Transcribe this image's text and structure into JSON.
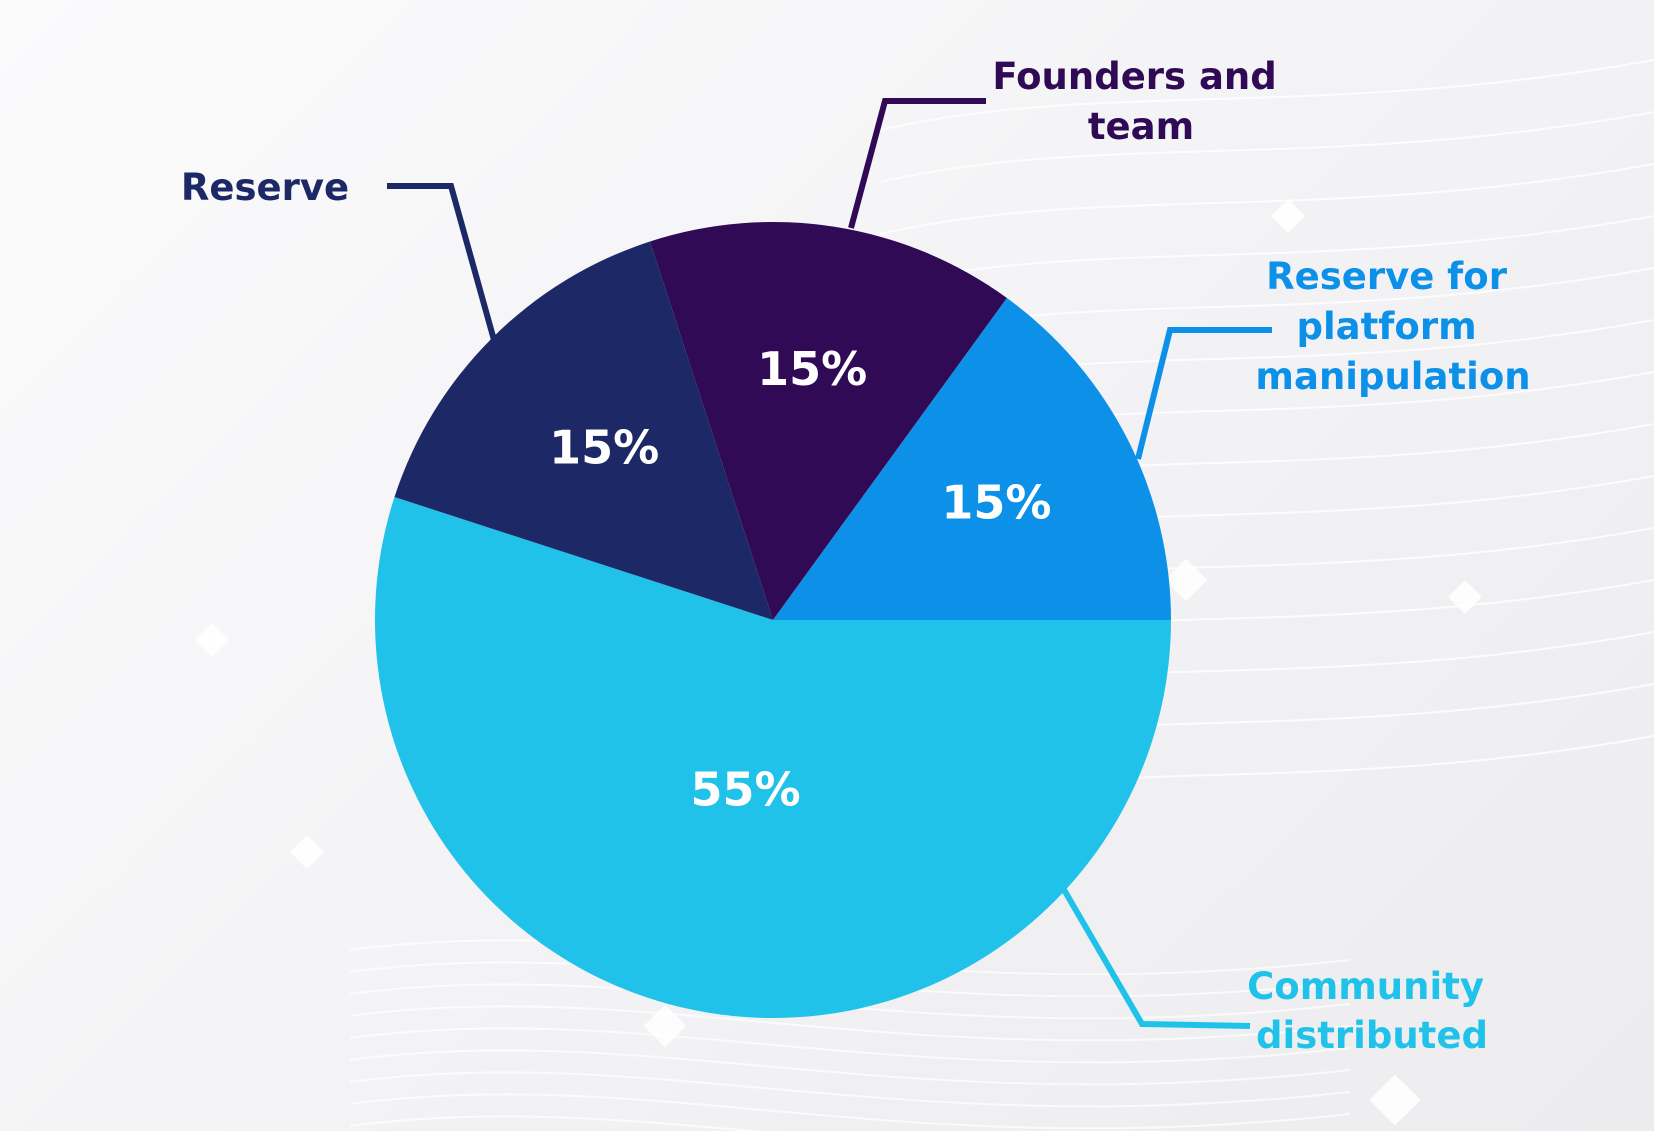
{
  "chart_data": {
    "type": "pie",
    "title": "",
    "slices": [
      {
        "label_lines": [
          "Founders and",
          "team"
        ],
        "value": 15,
        "value_label": "15%",
        "color": "#300a55"
      },
      {
        "label_lines": [
          "Reserve for",
          "platform",
          "manipulation"
        ],
        "value": 15,
        "value_label": "15%",
        "color": "#0c90e8"
      },
      {
        "label_lines": [
          "Community",
          "distributed"
        ],
        "value": 55,
        "value_label": "55%",
        "color": "#21c2ea"
      },
      {
        "label_lines": [
          "Reserve"
        ],
        "value": 15,
        "value_label": "15%",
        "color": "#1d2966"
      }
    ],
    "legend": "callouts",
    "start_angle_deg": -108,
    "direction": "clockwise"
  }
}
